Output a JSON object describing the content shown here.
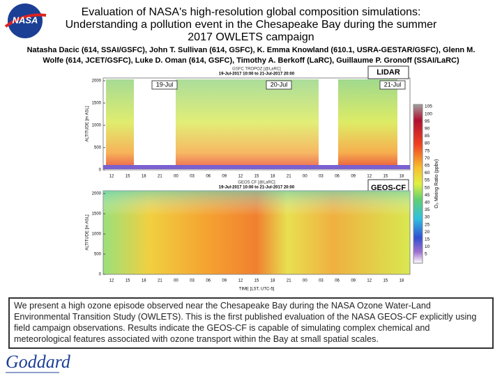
{
  "header": {
    "logo": "NASA",
    "title_lines": [
      "Evaluation of NASA's high-resolution global composition simulations:",
      "Understanding a pollution event in the Chesapeake Bay during the summer",
      "2017 OWLETS campaign"
    ],
    "author_lines": [
      "Natasha Dacic (614, SSAI/GSFC), John T. Sullivan (614, GSFC), K. Emma Knowland (610.1, USRA-GESTAR/GSFC), Glenn M.",
      "Wolfe (614, JCET/GSFC), Luke D. Oman (614, GSFC), Timothy A. Berkoff (LaRC), Guillaume P. Gronoff (SSAI/LaRC)"
    ]
  },
  "figure": {
    "lidar": {
      "title": "GSFC TROPOZ [@LaRC]",
      "subtitle": "19-Jul-2017 10:00 to 21-Jul-2017 20:00",
      "tag": "LIDAR",
      "days": [
        "19-Jul",
        "20-Jul",
        "21-Jul"
      ],
      "ylabel": "ALTITUDE [m ASL]",
      "yticks": [
        0,
        500,
        1000,
        1500,
        2000
      ],
      "xticks": [
        "12",
        "15",
        "18",
        "21",
        "00",
        "03",
        "06",
        "09",
        "12",
        "15",
        "18",
        "21",
        "00",
        "03",
        "06",
        "09",
        "12",
        "15",
        "18"
      ]
    },
    "geos": {
      "title": "GEOS CF [@LaRC]",
      "subtitle": "19-Jul-2017 10:00 to 21-Jul-2017 20:00",
      "tag": "GEOS-CF",
      "ylabel": "ALTITUDE [m ASL]",
      "yticks": [
        0,
        500,
        1000,
        1500,
        2000
      ],
      "xticks": [
        "12",
        "15",
        "18",
        "21",
        "00",
        "03",
        "06",
        "09",
        "12",
        "15",
        "18",
        "21",
        "00",
        "03",
        "06",
        "09",
        "12",
        "15",
        "18"
      ],
      "xlabel": "TIME [LST, UTC-5]"
    },
    "colorbar": {
      "label": "O₃ Mixing Ratio (ppbv)",
      "ticks": [
        105,
        100,
        95,
        90,
        85,
        80,
        75,
        70,
        65,
        60,
        55,
        50,
        45,
        40,
        35,
        30,
        25,
        20,
        15,
        10,
        5
      ]
    }
  },
  "abstract": "We present a high ozone episode observed near the Chesapeake Bay during the NASA Ozone Water-Land Environmental Transition Study (OWLETS). This is the first published evaluation of the NASA GEOS-CF explicitly using field campaign observations. Results indicate the GEOS-CF is capable of simulating complex chemical and meteorological features associated with ozone transport within the Bay at small spatial scales.",
  "footer": {
    "logo": "Goddard"
  }
}
